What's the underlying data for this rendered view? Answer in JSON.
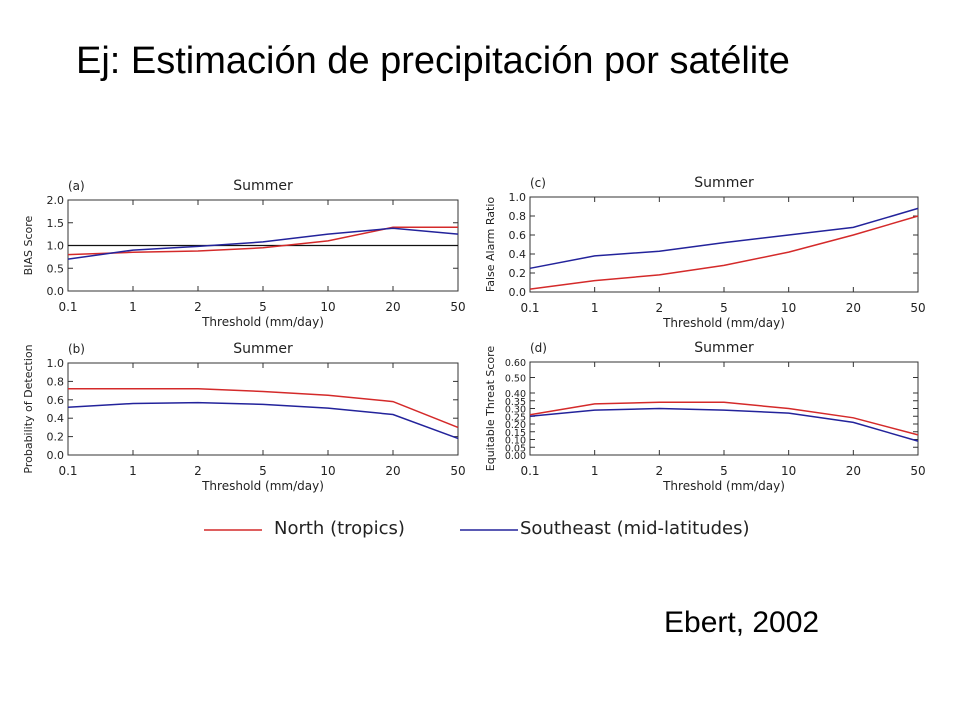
{
  "slide": {
    "title": "Ej: Estimación de precipitación por satélite",
    "credit": "Ebert, 2002"
  },
  "colors": {
    "north": "#d42a2a",
    "southeast": "#23239b",
    "reference": "#111111"
  },
  "legend": {
    "north": "North (tropics)",
    "southeast": "Southeast (mid-latitudes)"
  },
  "chart_data": [
    {
      "type": "line",
      "panel_label": "(a)",
      "title": "Summer",
      "xlabel": "Threshold  (mm/day)",
      "ylabel": "BIAS Score",
      "x": [
        "0.1",
        "1",
        "2",
        "5",
        "10",
        "20",
        "50"
      ],
      "ylim": [
        0,
        2.0
      ],
      "yticks": [
        "0.0",
        "0.5",
        "1.0",
        "1.5",
        "2.0"
      ],
      "reference_line": 1.0,
      "series": [
        {
          "name": "North (tropics)",
          "color": "#d42a2a",
          "values": [
            0.8,
            0.85,
            0.88,
            0.95,
            1.1,
            1.4,
            1.4
          ]
        },
        {
          "name": "Southeast (mid-latitudes)",
          "color": "#23239b",
          "values": [
            0.7,
            0.9,
            0.98,
            1.08,
            1.25,
            1.38,
            1.25
          ]
        }
      ]
    },
    {
      "type": "line",
      "panel_label": "(c)",
      "title": "Summer",
      "xlabel": "Threshold  (mm/day)",
      "ylabel": "False Alarm Ratio",
      "x": [
        "0.1",
        "1",
        "2",
        "5",
        "10",
        "20",
        "50"
      ],
      "ylim": [
        0,
        1.0
      ],
      "yticks": [
        "0.0",
        "0.2",
        "0.4",
        "0.6",
        "0.8",
        "1.0"
      ],
      "series": [
        {
          "name": "North (tropics)",
          "color": "#d42a2a",
          "values": [
            0.03,
            0.12,
            0.18,
            0.28,
            0.42,
            0.6,
            0.8
          ]
        },
        {
          "name": "Southeast (mid-latitudes)",
          "color": "#23239b",
          "values": [
            0.25,
            0.38,
            0.43,
            0.52,
            0.6,
            0.68,
            0.88
          ]
        }
      ]
    },
    {
      "type": "line",
      "panel_label": "(b)",
      "title": "Summer",
      "xlabel": "Threshold  (mm/day)",
      "ylabel": "Probability of Detection",
      "x": [
        "0.1",
        "1",
        "2",
        "5",
        "10",
        "20",
        "50"
      ],
      "ylim": [
        0,
        1.0
      ],
      "yticks": [
        "0.0",
        "0.2",
        "0.4",
        "0.6",
        "0.8",
        "1.0"
      ],
      "series": [
        {
          "name": "North (tropics)",
          "color": "#d42a2a",
          "values": [
            0.72,
            0.72,
            0.72,
            0.69,
            0.65,
            0.58,
            0.3
          ]
        },
        {
          "name": "Southeast (mid-latitudes)",
          "color": "#23239b",
          "values": [
            0.52,
            0.56,
            0.57,
            0.55,
            0.51,
            0.44,
            0.18
          ]
        }
      ]
    },
    {
      "type": "line",
      "panel_label": "(d)",
      "title": "Summer",
      "xlabel": "Threshold  (mm/day)",
      "ylabel": "Equitable Threat Score",
      "x": [
        "0.1",
        "1",
        "2",
        "5",
        "10",
        "20",
        "50"
      ],
      "ylim": [
        0,
        0.6
      ],
      "yticks": [
        "0.00",
        "0.05",
        "0.10",
        "0.15",
        "0.20",
        "0.25",
        "0.30",
        "0.35",
        "0.40",
        "0.50",
        "0.60"
      ],
      "series": [
        {
          "name": "North (tropics)",
          "color": "#d42a2a",
          "values": [
            0.26,
            0.33,
            0.34,
            0.34,
            0.3,
            0.24,
            0.13
          ]
        },
        {
          "name": "Southeast (mid-latitudes)",
          "color": "#23239b",
          "values": [
            0.25,
            0.29,
            0.3,
            0.29,
            0.27,
            0.21,
            0.09
          ]
        }
      ]
    }
  ]
}
